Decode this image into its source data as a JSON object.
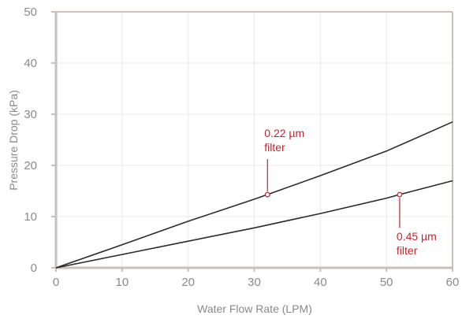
{
  "chart_data": {
    "type": "line",
    "title": "",
    "xlabel": "Water Flow Rate (LPM)",
    "ylabel": "Pressure Drop (kPa)",
    "xlim": [
      0,
      60
    ],
    "ylim": [
      0,
      50
    ],
    "xticks": [
      0,
      10,
      20,
      30,
      40,
      50,
      60
    ],
    "yticks": [
      0,
      10,
      20,
      30,
      40,
      50
    ],
    "grid": true,
    "legend": "none",
    "series": [
      {
        "label": "0.22 µm filter",
        "label_lines": [
          "0.22 µm",
          "filter"
        ],
        "x": [
          0,
          10,
          20,
          30,
          32,
          40,
          50,
          60
        ],
        "y": [
          0,
          4.5,
          9.1,
          13.4,
          14.3,
          18.0,
          22.8,
          28.5
        ],
        "marker": {
          "x": 32,
          "y": 14.3
        }
      },
      {
        "label": "0.45 µm filter",
        "label_lines": [
          "0.45 µm",
          "filter"
        ],
        "x": [
          0,
          10,
          20,
          30,
          40,
          50,
          52,
          60
        ],
        "y": [
          0,
          2.6,
          5.2,
          7.8,
          10.6,
          13.6,
          14.3,
          17.0
        ],
        "marker": {
          "x": 52,
          "y": 14.3
        }
      }
    ],
    "colors": {
      "line": "#2b2b2b",
      "axis": "#c9bfbb",
      "grid": "#e8e8e8",
      "annotation": "#c0272d",
      "text": "#8a8a8a"
    }
  }
}
